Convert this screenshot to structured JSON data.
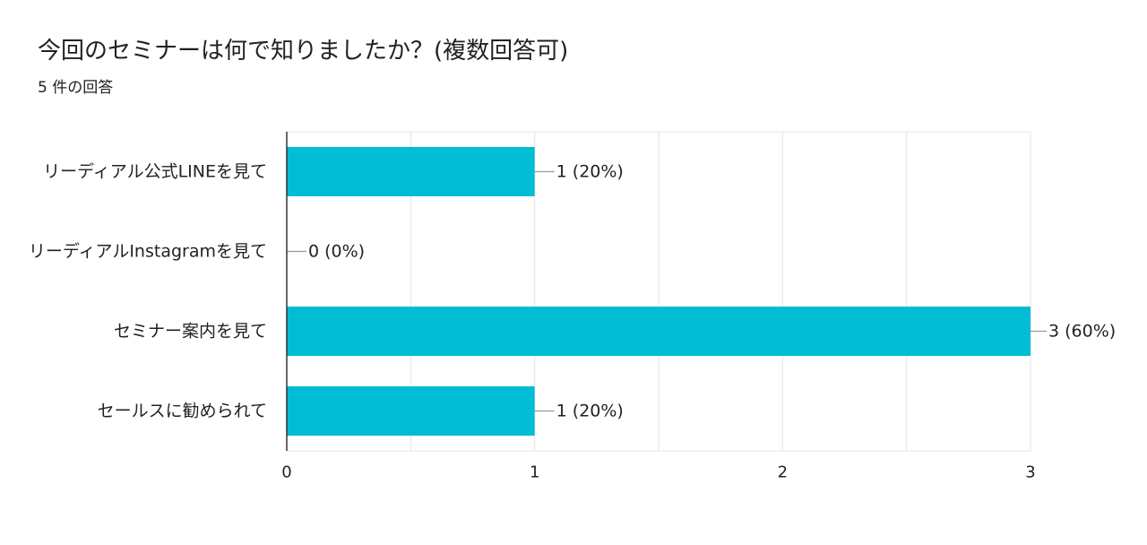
{
  "header": {
    "title": "今回のセミナーは何で知りましたか？(複数回答可)",
    "subtitle": "5 件の回答"
  },
  "colors": {
    "bar": "#00bcd4",
    "grid": "#e6e6e6",
    "axis": "#333333",
    "leader": "#999999",
    "text": "#222222"
  },
  "chart_data": {
    "type": "bar",
    "orientation": "horizontal",
    "title": "今回のセミナーは何で知りましたか？(複数回答可)",
    "subtitle": "5 件の回答",
    "categories": [
      "リーディアル公式LINEを見て",
      "リーディアルInstagramを見て",
      "セミナー案内を見て",
      "セールスに勧められて"
    ],
    "values": [
      1,
      0,
      3,
      1
    ],
    "data_labels": [
      "1 (20%)",
      "0 (0%)",
      "3 (60%)",
      "1 (20%)"
    ],
    "xlim": [
      0,
      3
    ],
    "xticks": [
      "0",
      "1",
      "2",
      "3"
    ],
    "grid": true,
    "legend": "none"
  }
}
